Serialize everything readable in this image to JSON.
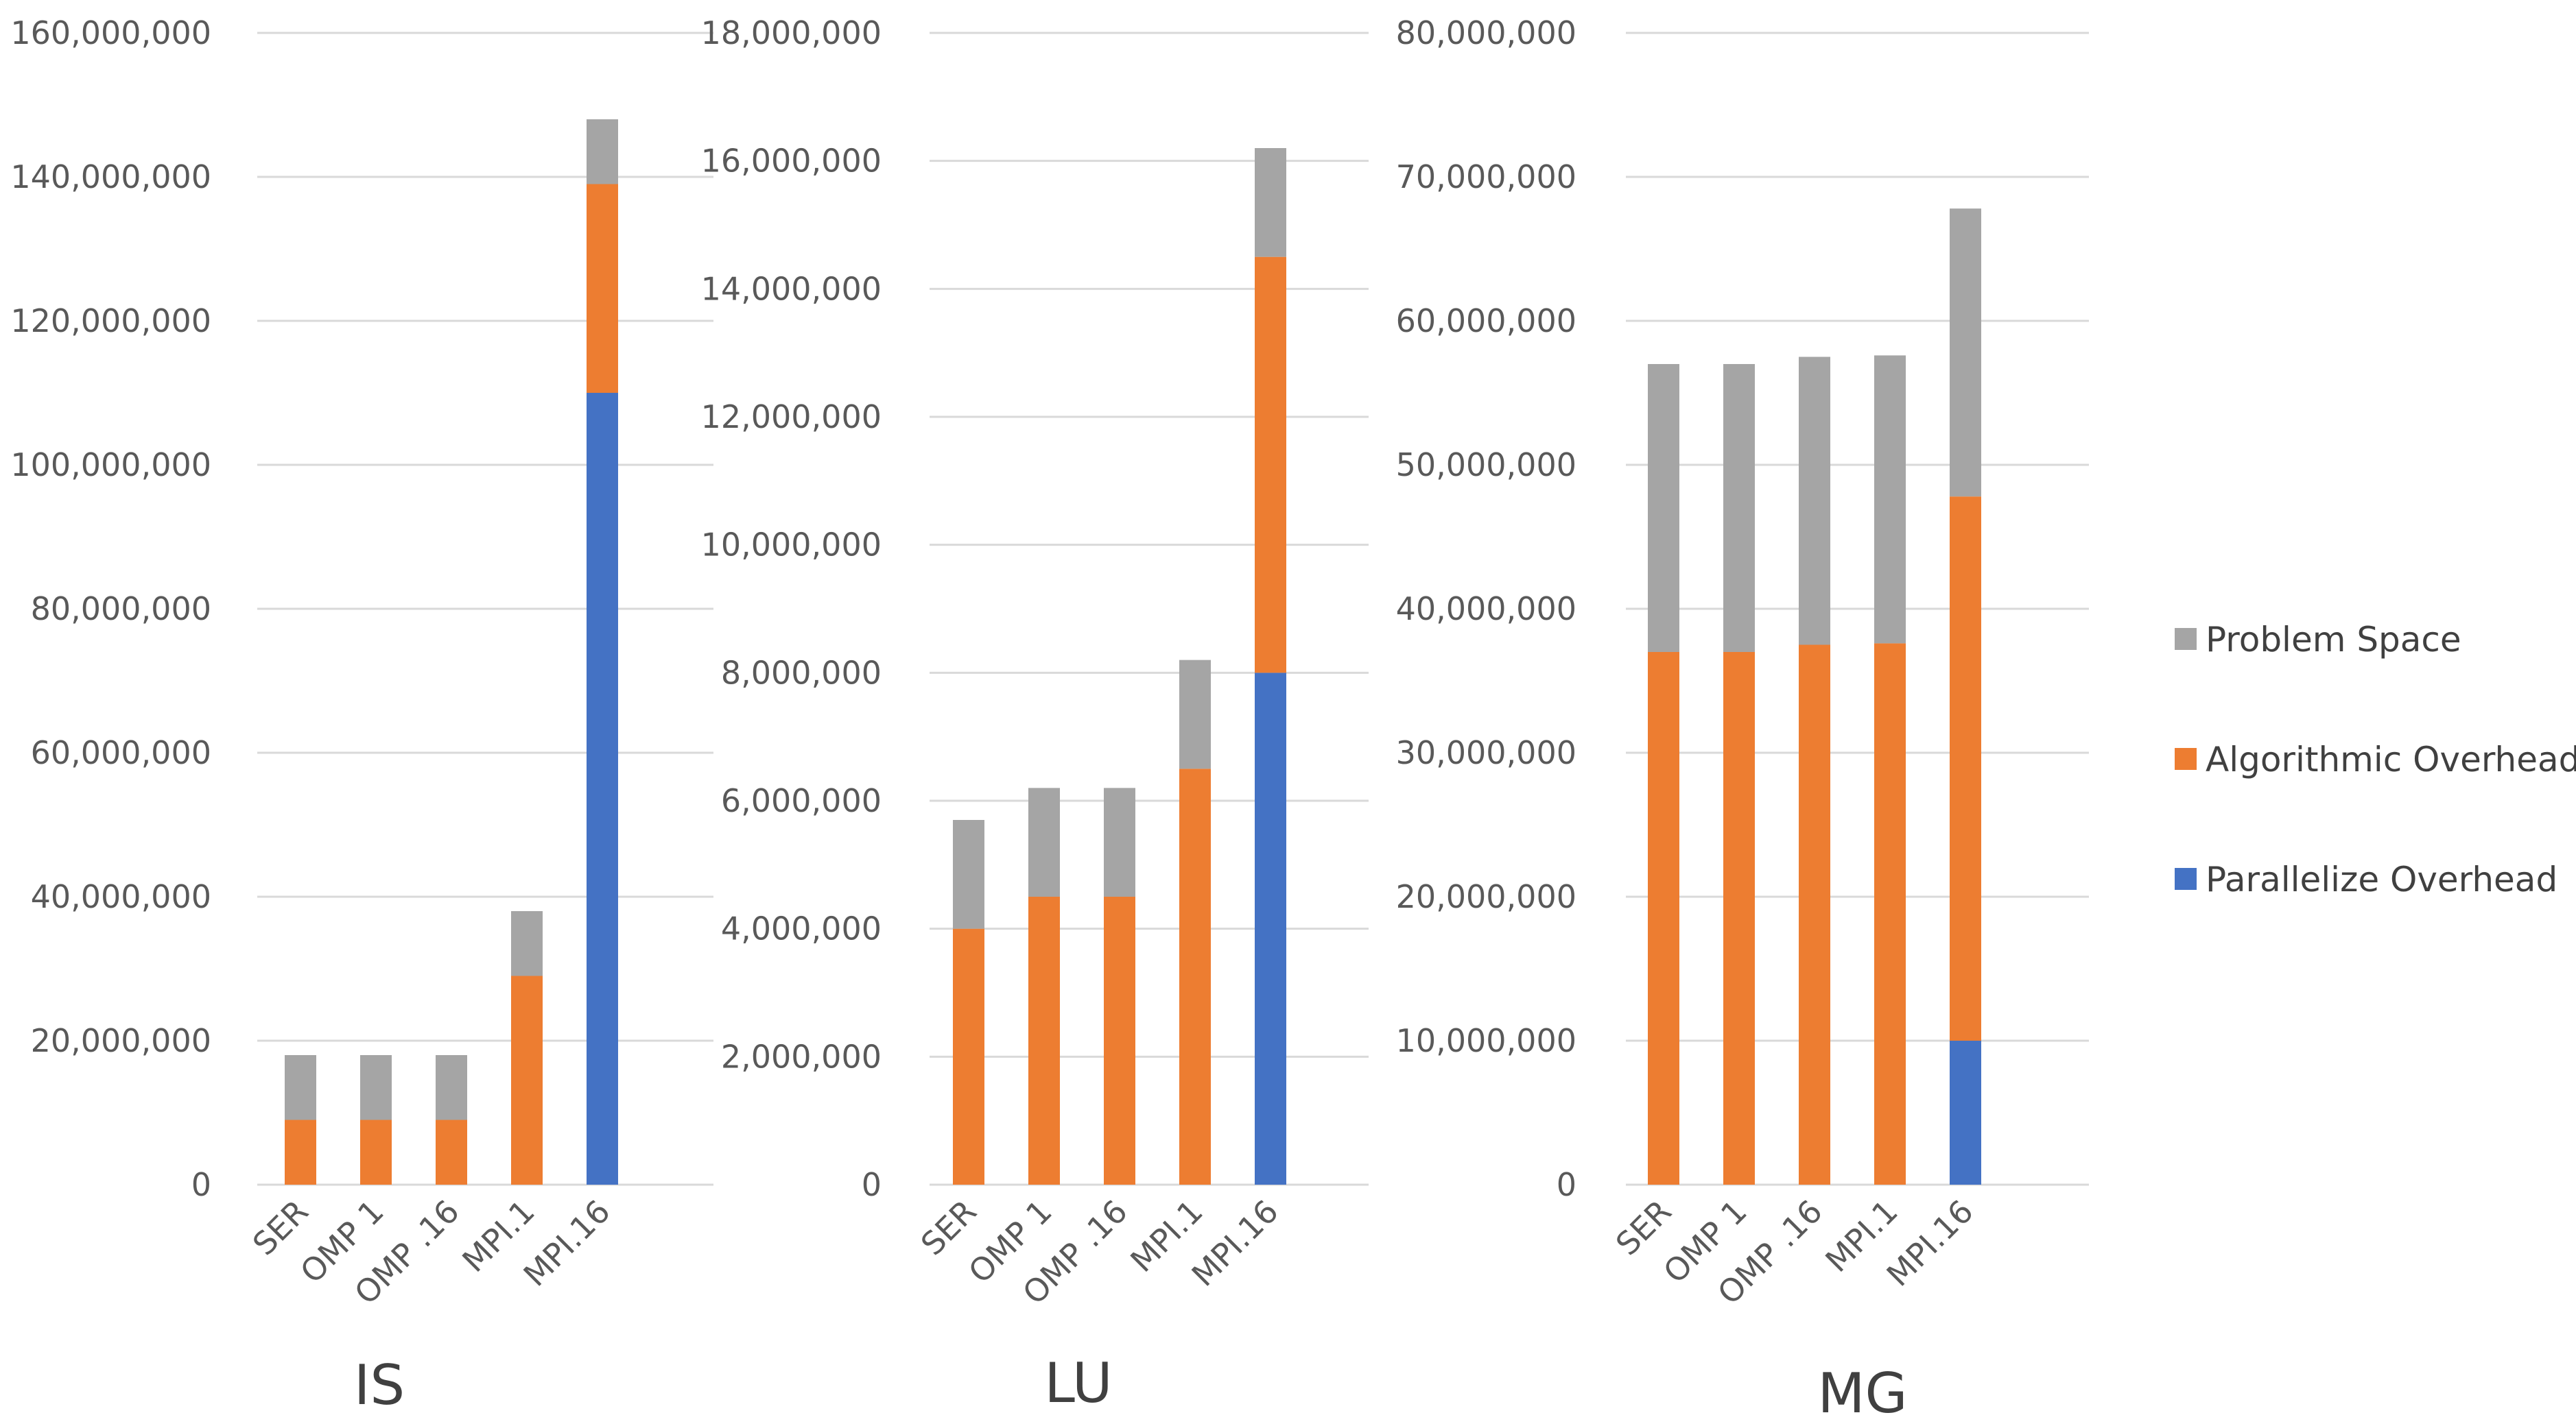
{
  "legend": [
    {
      "name": "Problem Space",
      "color": "#a5a5a5"
    },
    {
      "name": "Algorithmic Overhead",
      "color": "#ed7d31"
    },
    {
      "name": "Parallelize Overhead",
      "color": "#4472c4"
    }
  ],
  "chart_data": [
    {
      "type": "bar",
      "stacked": true,
      "title": "IS",
      "categories": [
        "SER",
        "OMP 1",
        "OMP .16",
        "MPI.1",
        "MPI.16"
      ],
      "ylim": [
        0,
        160000000
      ],
      "yticks": [
        "0",
        "20,000,000",
        "40,000,000",
        "60,000,000",
        "80,000,000",
        "100,000,000",
        "120,000,000",
        "140,000,000",
        "160,000,000"
      ],
      "series": [
        {
          "name": "Parallelize Overhead",
          "color": "#4472c4",
          "values": [
            0,
            0,
            0,
            0,
            110000000
          ]
        },
        {
          "name": "Algorithmic Overhead",
          "color": "#ed7d31",
          "values": [
            9000000,
            9000000,
            9000000,
            29000000,
            29000000
          ]
        },
        {
          "name": "Problem Space",
          "color": "#a5a5a5",
          "values": [
            9000000,
            9000000,
            9000000,
            9000000,
            9000000
          ]
        }
      ]
    },
    {
      "type": "bar",
      "stacked": true,
      "title": "LU",
      "categories": [
        "SER",
        "OMP 1",
        "OMP .16",
        "MPI.1",
        "MPI.16"
      ],
      "ylim": [
        0,
        18000000
      ],
      "yticks": [
        "0",
        "2,000,000",
        "4,000,000",
        "6,000,000",
        "8,000,000",
        "10,000,000",
        "12,000,000",
        "14,000,000",
        "16,000,000",
        "18,000,000"
      ],
      "series": [
        {
          "name": "Parallelize Overhead",
          "color": "#4472c4",
          "values": [
            0,
            0,
            0,
            0,
            8000000
          ]
        },
        {
          "name": "Algorithmic Overhead",
          "color": "#ed7d31",
          "values": [
            4000000,
            4500000,
            4500000,
            6500000,
            6500000
          ]
        },
        {
          "name": "Problem Space",
          "color": "#a5a5a5",
          "values": [
            1700000,
            1700000,
            1700000,
            1700000,
            1700000
          ]
        }
      ]
    },
    {
      "type": "bar",
      "stacked": true,
      "title": "MG",
      "categories": [
        "SER",
        "OMP 1",
        "OMP .16",
        "MPI.1",
        "MPI.16"
      ],
      "ylim": [
        0,
        80000000
      ],
      "yticks": [
        "0",
        "10,000,000",
        "20,000,000",
        "30,000,000",
        "40,000,000",
        "50,000,000",
        "60,000,000",
        "70,000,000",
        "80,000,000"
      ],
      "series": [
        {
          "name": "Parallelize Overhead",
          "color": "#4472c4",
          "values": [
            0,
            0,
            0,
            0,
            10000000
          ]
        },
        {
          "name": "Algorithmic Overhead",
          "color": "#ed7d31",
          "values": [
            37000000,
            37000000,
            37500000,
            37600000,
            37800000
          ]
        },
        {
          "name": "Problem Space",
          "color": "#a5a5a5",
          "values": [
            20000000,
            20000000,
            20000000,
            20000000,
            20000000
          ]
        }
      ]
    }
  ]
}
